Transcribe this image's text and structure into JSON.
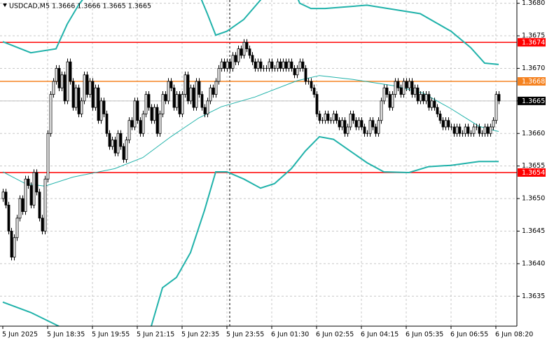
{
  "chart_data": {
    "type": "candlestick",
    "title": "USDCAD,M5  1.3666 1.3666 1.3665 1.3665",
    "categories": [
      "5 Jun 2025",
      null,
      null,
      null,
      null,
      null,
      null,
      null,
      null,
      null,
      null,
      null,
      null,
      null,
      null,
      null,
      "5 Jun 18:35",
      null,
      null,
      null,
      null,
      null,
      null,
      null,
      null,
      null,
      null,
      null,
      null,
      null,
      null,
      null,
      "5 Jun 19:55",
      null,
      null,
      null,
      null,
      null,
      null,
      null,
      null,
      null,
      null,
      null,
      null,
      null,
      null,
      null,
      "5 Jun 21:15",
      null,
      null,
      null,
      null,
      null,
      null,
      null,
      null,
      null,
      null,
      null,
      null,
      null,
      null,
      null,
      "5 Jun 22:35",
      null,
      null,
      null,
      null,
      null,
      null,
      null,
      null,
      null,
      null,
      null,
      null,
      null,
      null,
      null,
      "5 Jun 23:55",
      null,
      null,
      null,
      null,
      null,
      null,
      null,
      null,
      null,
      null,
      null,
      null,
      null,
      null,
      null,
      "6 Jun 01:30",
      null,
      null,
      null,
      null,
      null,
      null,
      null,
      null,
      null,
      null,
      null,
      null,
      null,
      null,
      null,
      "6 Jun 02:55",
      null,
      null,
      null,
      null,
      null,
      null,
      null,
      null,
      null,
      null,
      null,
      null,
      null,
      null,
      null,
      "6 Jun 04:15",
      null,
      null,
      null,
      null,
      null,
      null,
      null,
      null,
      null,
      null,
      null,
      null,
      null,
      null,
      null,
      "6 Jun 05:35",
      null,
      null,
      null,
      null,
      null,
      null,
      null,
      null,
      null,
      null,
      null,
      null,
      null,
      null,
      null,
      "6 Jun 06:55",
      null,
      null,
      null,
      null,
      null,
      null,
      null,
      null,
      null,
      null,
      null,
      null,
      null,
      null,
      null,
      "6 Jun 08:20",
      null
    ],
    "open": [
      1.365,
      1.3651,
      1.3649,
      1.3645,
      1.3641,
      1.3644,
      1.3647,
      1.365,
      1.3648,
      1.3653,
      1.3652,
      1.3649,
      1.3654,
      1.3651,
      1.3647,
      1.3645,
      1.3653,
      1.366,
      1.3666,
      1.3668,
      1.367,
      1.3667,
      1.3669,
      1.3665,
      1.3671,
      1.3668,
      1.3664,
      1.3667,
      1.3663,
      1.3665,
      1.3669,
      1.3666,
      1.3668,
      1.3664,
      1.3667,
      1.3662,
      1.3665,
      1.3663,
      1.366,
      1.3658,
      1.3659,
      1.3657,
      1.366,
      1.3658,
      1.3656,
      1.3659,
      1.3662,
      1.3661,
      1.3665,
      1.3662,
      1.366,
      1.3663,
      1.3666,
      1.3664,
      1.3662,
      1.3664,
      1.366,
      1.3663,
      1.3666,
      1.3665,
      1.3668,
      1.3667,
      1.3664,
      1.3666,
      1.3663,
      1.3666,
      1.3669,
      1.3665,
      1.3667,
      1.3664,
      1.3668,
      1.3666,
      1.3664,
      1.3663,
      1.3665,
      1.3667,
      1.3666,
      1.3668,
      1.367,
      1.3671,
      1.367,
      1.3671,
      1.367,
      1.3672,
      1.3671,
      1.3673,
      1.3672,
      1.3674,
      1.3673,
      1.3672,
      1.3671,
      1.367,
      1.3671,
      1.367,
      1.367,
      1.367,
      1.3671,
      1.367,
      1.367,
      1.3671,
      1.367,
      1.3671,
      1.367,
      1.3671,
      1.367,
      1.3669,
      1.367,
      1.3671,
      1.367,
      1.3668,
      1.3668,
      1.3667,
      1.3666,
      1.3663,
      1.3662,
      1.3662,
      1.3663,
      1.3662,
      1.3662,
      1.3663,
      1.3662,
      1.3661,
      1.3662,
      1.366,
      1.3661,
      1.3663,
      1.3662,
      1.3661,
      1.3662,
      1.3661,
      1.366,
      1.366,
      1.3662,
      1.3661,
      1.366,
      1.3662,
      1.3665,
      1.3667,
      1.3666,
      1.3664,
      1.3666,
      1.3668,
      1.3667,
      1.3666,
      1.3668,
      1.3667,
      1.3668,
      1.3666,
      1.3667,
      1.3665,
      1.3666,
      1.3665,
      1.3666,
      1.3664,
      1.3665,
      1.3664,
      1.3663,
      1.3662,
      1.3661,
      1.3662,
      1.3661,
      1.3661,
      1.366,
      1.3661,
      1.366,
      1.366,
      1.3661,
      1.366,
      1.366,
      1.3661,
      1.3661,
      1.366,
      1.366,
      1.3661,
      1.366,
      1.3661,
      1.3662,
      1.3666
    ],
    "high": [
      1.36515,
      1.36515,
      1.36495,
      1.36455,
      1.36445,
      1.36475,
      1.36505,
      1.36505,
      1.36535,
      1.36535,
      1.36525,
      1.36545,
      1.36545,
      1.36515,
      1.36475,
      1.36535,
      1.36605,
      1.36665,
      1.36685,
      1.36705,
      1.36705,
      1.36695,
      1.36695,
      1.36715,
      1.36715,
      1.36685,
      1.36675,
      1.36675,
      1.36655,
      1.36695,
      1.36695,
      1.36685,
      1.36685,
      1.36675,
      1.36675,
      1.36655,
      1.36655,
      1.36635,
      1.36605,
      1.36595,
      1.36595,
      1.36605,
      1.36605,
      1.36585,
      1.36595,
      1.36625,
      1.36625,
      1.36655,
      1.36655,
      1.36625,
      1.36635,
      1.36665,
      1.36665,
      1.36645,
      1.36645,
      1.36645,
      1.36635,
      1.36665,
      1.36665,
      1.36685,
      1.36685,
      1.36675,
      1.36665,
      1.36665,
      1.36665,
      1.36695,
      1.36695,
      1.36675,
      1.36675,
      1.36685,
      1.36685,
      1.36665,
      1.36645,
      1.36655,
      1.36675,
      1.36675,
      1.36685,
      1.36705,
      1.36715,
      1.36715,
      1.36715,
      1.36715,
      1.36725,
      1.36725,
      1.36735,
      1.36735,
      1.36745,
      1.36745,
      1.36735,
      1.36725,
      1.36715,
      1.36715,
      1.36715,
      1.36705,
      1.36705,
      1.36715,
      1.36715,
      1.36705,
      1.36715,
      1.36715,
      1.36715,
      1.36715,
      1.36715,
      1.36715,
      1.36705,
      1.36705,
      1.36715,
      1.36715,
      1.36705,
      1.36685,
      1.36685,
      1.36675,
      1.36665,
      1.36635,
      1.36625,
      1.36635,
      1.36635,
      1.36625,
      1.36635,
      1.36635,
      1.36625,
      1.36625,
      1.36625,
      1.36615,
      1.36635,
      1.36635,
      1.36625,
      1.36625,
      1.36625,
      1.36615,
      1.36605,
      1.36625,
      1.36625,
      1.36615,
      1.36625,
      1.36655,
      1.36675,
      1.36675,
      1.36665,
      1.36665,
      1.36685,
      1.36685,
      1.36675,
      1.36685,
      1.36685,
      1.36685,
      1.36685,
      1.36675,
      1.36675,
      1.36665,
      1.36665,
      1.36665,
      1.36665,
      1.36655,
      1.36655,
      1.36645,
      1.36635,
      1.36625,
      1.36625,
      1.36625,
      1.36615,
      1.36615,
      1.36615,
      1.36615,
      1.36605,
      1.36615,
      1.36615,
      1.36605,
      1.36615,
      1.36615,
      1.36615,
      1.36605,
      1.36615,
      1.36615,
      1.36615,
      1.36625,
      1.36665,
      1.36665
    ],
    "low": [
      1.36495,
      1.36485,
      1.36445,
      1.36405,
      1.36405,
      1.36435,
      1.36465,
      1.36475,
      1.36475,
      1.36515,
      1.36485,
      1.36485,
      1.36505,
      1.36465,
      1.36445,
      1.36445,
      1.36525,
      1.36595,
      1.36655,
      1.36675,
      1.36665,
      1.36665,
      1.36645,
      1.36645,
      1.36675,
      1.36635,
      1.36635,
      1.36625,
      1.36625,
      1.36645,
      1.36655,
      1.36655,
      1.36635,
      1.36635,
      1.36615,
      1.36615,
      1.36625,
      1.36595,
      1.36575,
      1.36575,
      1.36565,
      1.36565,
      1.36575,
      1.36555,
      1.36555,
      1.36585,
      1.36605,
      1.36605,
      1.36615,
      1.36595,
      1.36595,
      1.36625,
      1.36635,
      1.36615,
      1.36615,
      1.36595,
      1.36595,
      1.36625,
      1.36645,
      1.36645,
      1.36665,
      1.36635,
      1.36635,
      1.36625,
      1.36625,
      1.36655,
      1.36645,
      1.36645,
      1.36635,
      1.36635,
      1.36655,
      1.36635,
      1.36625,
      1.36625,
      1.36645,
      1.36655,
      1.36655,
      1.36675,
      1.36695,
      1.36695,
      1.36695,
      1.36695,
      1.36695,
      1.36705,
      1.36705,
      1.36715,
      1.36715,
      1.36725,
      1.36715,
      1.36705,
      1.36695,
      1.36695,
      1.36695,
      1.36695,
      1.36695,
      1.36695,
      1.36695,
      1.36695,
      1.36695,
      1.36695,
      1.36695,
      1.36695,
      1.36695,
      1.36695,
      1.36685,
      1.36685,
      1.36695,
      1.36695,
      1.36675,
      1.36675,
      1.36665,
      1.36655,
      1.36625,
      1.36615,
      1.36615,
      1.36615,
      1.36615,
      1.36615,
      1.36615,
      1.36615,
      1.36605,
      1.36605,
      1.36595,
      1.36595,
      1.36605,
      1.36615,
      1.36605,
      1.36605,
      1.36605,
      1.36595,
      1.36595,
      1.36595,
      1.36605,
      1.36595,
      1.36595,
      1.36615,
      1.36645,
      1.36655,
      1.36635,
      1.36635,
      1.36655,
      1.36665,
      1.36655,
      1.36655,
      1.36665,
      1.36665,
      1.36655,
      1.36655,
      1.36645,
      1.36645,
      1.36645,
      1.36645,
      1.36635,
      1.36635,
      1.36635,
      1.36625,
      1.36615,
      1.36605,
      1.36605,
      1.36605,
      1.36605,
      1.36595,
      1.36595,
      1.36595,
      1.36595,
      1.36595,
      1.36595,
      1.36595,
      1.36595,
      1.36605,
      1.36595,
      1.36595,
      1.36595,
      1.36595,
      1.36595,
      1.36605,
      1.36615,
      1.36645
    ],
    "close": [
      1.3651,
      1.3649,
      1.3645,
      1.3641,
      1.3644,
      1.3647,
      1.365,
      1.3648,
      1.3653,
      1.3652,
      1.3649,
      1.3654,
      1.3651,
      1.3647,
      1.3645,
      1.3653,
      1.366,
      1.3666,
      1.3668,
      1.367,
      1.3667,
      1.3669,
      1.3665,
      1.3671,
      1.3668,
      1.3664,
      1.3667,
      1.3663,
      1.3665,
      1.3669,
      1.3666,
      1.3668,
      1.3664,
      1.3667,
      1.3662,
      1.3665,
      1.3663,
      1.366,
      1.3658,
      1.3659,
      1.3657,
      1.366,
      1.3658,
      1.3656,
      1.3659,
      1.3662,
      1.3661,
      1.3665,
      1.3662,
      1.366,
      1.3663,
      1.3666,
      1.3664,
      1.3662,
      1.3664,
      1.366,
      1.3663,
      1.3666,
      1.3665,
      1.3668,
      1.3667,
      1.3664,
      1.3666,
      1.3663,
      1.3666,
      1.3669,
      1.3665,
      1.3667,
      1.3664,
      1.3668,
      1.3666,
      1.3664,
      1.3663,
      1.3665,
      1.3667,
      1.3666,
      1.3668,
      1.367,
      1.3671,
      1.367,
      1.3671,
      1.367,
      1.3672,
      1.3671,
      1.3673,
      1.3672,
      1.3674,
      1.3673,
      1.3672,
      1.3671,
      1.367,
      1.3671,
      1.367,
      1.367,
      1.367,
      1.3671,
      1.367,
      1.367,
      1.3671,
      1.367,
      1.3671,
      1.367,
      1.3671,
      1.367,
      1.3669,
      1.367,
      1.3671,
      1.367,
      1.3668,
      1.3668,
      1.3667,
      1.3666,
      1.3663,
      1.3662,
      1.3662,
      1.3663,
      1.3662,
      1.3662,
      1.3663,
      1.3662,
      1.3661,
      1.3662,
      1.366,
      1.3661,
      1.3663,
      1.3662,
      1.3661,
      1.3662,
      1.3661,
      1.366,
      1.366,
      1.3662,
      1.3661,
      1.366,
      1.3662,
      1.3665,
      1.3667,
      1.3666,
      1.3664,
      1.3666,
      1.3668,
      1.3667,
      1.3666,
      1.3668,
      1.3667,
      1.3668,
      1.3666,
      1.3667,
      1.3665,
      1.3666,
      1.3665,
      1.3666,
      1.3664,
      1.3665,
      1.3664,
      1.3663,
      1.3662,
      1.3661,
      1.3662,
      1.3661,
      1.3661,
      1.366,
      1.3661,
      1.366,
      1.366,
      1.3661,
      1.366,
      1.366,
      1.3661,
      1.3661,
      1.366,
      1.366,
      1.3661,
      1.366,
      1.3661,
      1.3662,
      1.3666,
      1.3665
    ],
    "bands": [
      {
        "color": "#20b2aa",
        "width": 2,
        "x": [
          0,
          10,
          19,
          23,
          27,
          31,
          45,
          60,
          70,
          73,
          76,
          80,
          86,
          91,
          95,
          104,
          106,
          110,
          115,
          130,
          149,
          160,
          167,
          172,
          177
        ],
        "values": [
          1.36741,
          1.36724,
          1.3673,
          1.36768,
          1.36797,
          1.3682,
          1.3684,
          1.3683,
          1.36815,
          1.36784,
          1.36751,
          1.36757,
          1.36775,
          1.368,
          1.3682,
          1.3682,
          1.368,
          1.36792,
          1.36792,
          1.36797,
          1.36784,
          1.36757,
          1.36732,
          1.36708,
          1.36706
        ]
      },
      {
        "color": "#20b2aa",
        "width": 1,
        "x": [
          0,
          8,
          15,
          25,
          40,
          50,
          60,
          70,
          78,
          90,
          105,
          113,
          125,
          140,
          150,
          160,
          170,
          177
        ],
        "values": [
          1.36541,
          1.36523,
          1.36519,
          1.36533,
          1.36546,
          1.36563,
          1.36595,
          1.36624,
          1.36641,
          1.36656,
          1.36681,
          1.36689,
          1.36683,
          1.36673,
          1.36662,
          1.36638,
          1.36611,
          1.36603
        ]
      },
      {
        "color": "#20b2aa",
        "width": 2,
        "x": [
          0,
          10,
          20,
          22,
          50,
          53,
          57,
          62,
          67,
          72,
          76,
          80,
          86,
          92,
          97,
          103,
          108,
          113,
          118,
          124,
          130,
          136,
          145,
          152,
          160,
          170,
          177
        ],
        "values": [
          1.36341,
          1.36325,
          1.36304,
          1.36293,
          1.36277,
          1.36304,
          1.36363,
          1.36379,
          1.36417,
          1.36482,
          1.36541,
          1.36541,
          1.3653,
          1.36516,
          1.36523,
          1.36546,
          1.36573,
          1.36595,
          1.36591,
          1.36573,
          1.36555,
          1.36541,
          1.3654,
          1.36549,
          1.36551,
          1.36557,
          1.36557
        ]
      }
    ],
    "levels": [
      {
        "value": 1.3674,
        "color": "#ff0000",
        "label_bg": "#ff0000"
      },
      {
        "value": 1.3654,
        "color": "#ff0000",
        "label_bg": "#ff0000"
      },
      {
        "value": 1.3668,
        "color": "#f58220",
        "label_bg": "#f58220"
      },
      {
        "value": 1.3665,
        "color": "#c0c0c0",
        "label_bg": "#000000"
      }
    ],
    "ylim": [
      1.36304,
      1.36805
    ],
    "yticks": [
      {
        "value": 1.368,
        "label": "1.3680"
      },
      1.3675,
      {
        "value": 1.367,
        "label": "1.3670"
      },
      1.3665,
      {
        "value": 1.366,
        "label": "1.3660"
      },
      1.3655,
      {
        "value": 1.365,
        "label": "1.3650"
      },
      1.3645,
      {
        "value": 1.364,
        "label": "1.3640"
      },
      1.3635
    ],
    "grid": true
  }
}
